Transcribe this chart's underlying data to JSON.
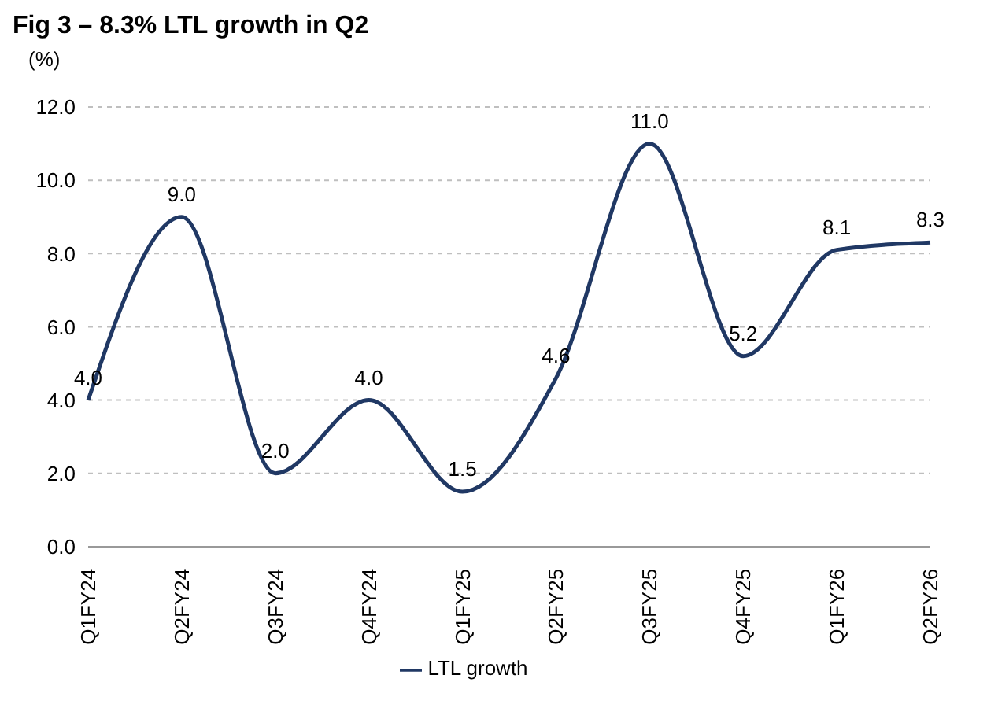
{
  "chart_data": {
    "type": "line",
    "title": "Fig 3 – 8.3% LTL growth in Q2",
    "ylabel": "(%)",
    "categories": [
      "Q1FY24",
      "Q2FY24",
      "Q3FY24",
      "Q4FY24",
      "Q1FY25",
      "Q2FY25",
      "Q3FY25",
      "Q4FY25",
      "Q1FY26",
      "Q2FY26"
    ],
    "series": [
      {
        "name": "LTL growth",
        "color": "#203864",
        "values": [
          4.0,
          9.0,
          2.0,
          4.0,
          1.5,
          4.6,
          11.0,
          5.2,
          8.1,
          8.3
        ],
        "value_labels": [
          "4.0",
          "9.0",
          "2.0",
          "4.0",
          "1.5",
          "4.6",
          "11.0",
          "5.2",
          "8.1",
          "8.3"
        ]
      }
    ],
    "ylim": [
      0,
      12
    ],
    "yticks": [
      {
        "value": 0,
        "label": "0.0"
      },
      {
        "value": 2,
        "label": "2.0"
      },
      {
        "value": 4,
        "label": "4.0"
      },
      {
        "value": 6,
        "label": "6.0"
      },
      {
        "value": 8,
        "label": "8.0"
      },
      {
        "value": 10,
        "label": "10.0"
      },
      {
        "value": 12,
        "label": "12.0"
      }
    ],
    "grid": "y",
    "legend": "bottom",
    "marker": "none",
    "line_style": "solid"
  }
}
